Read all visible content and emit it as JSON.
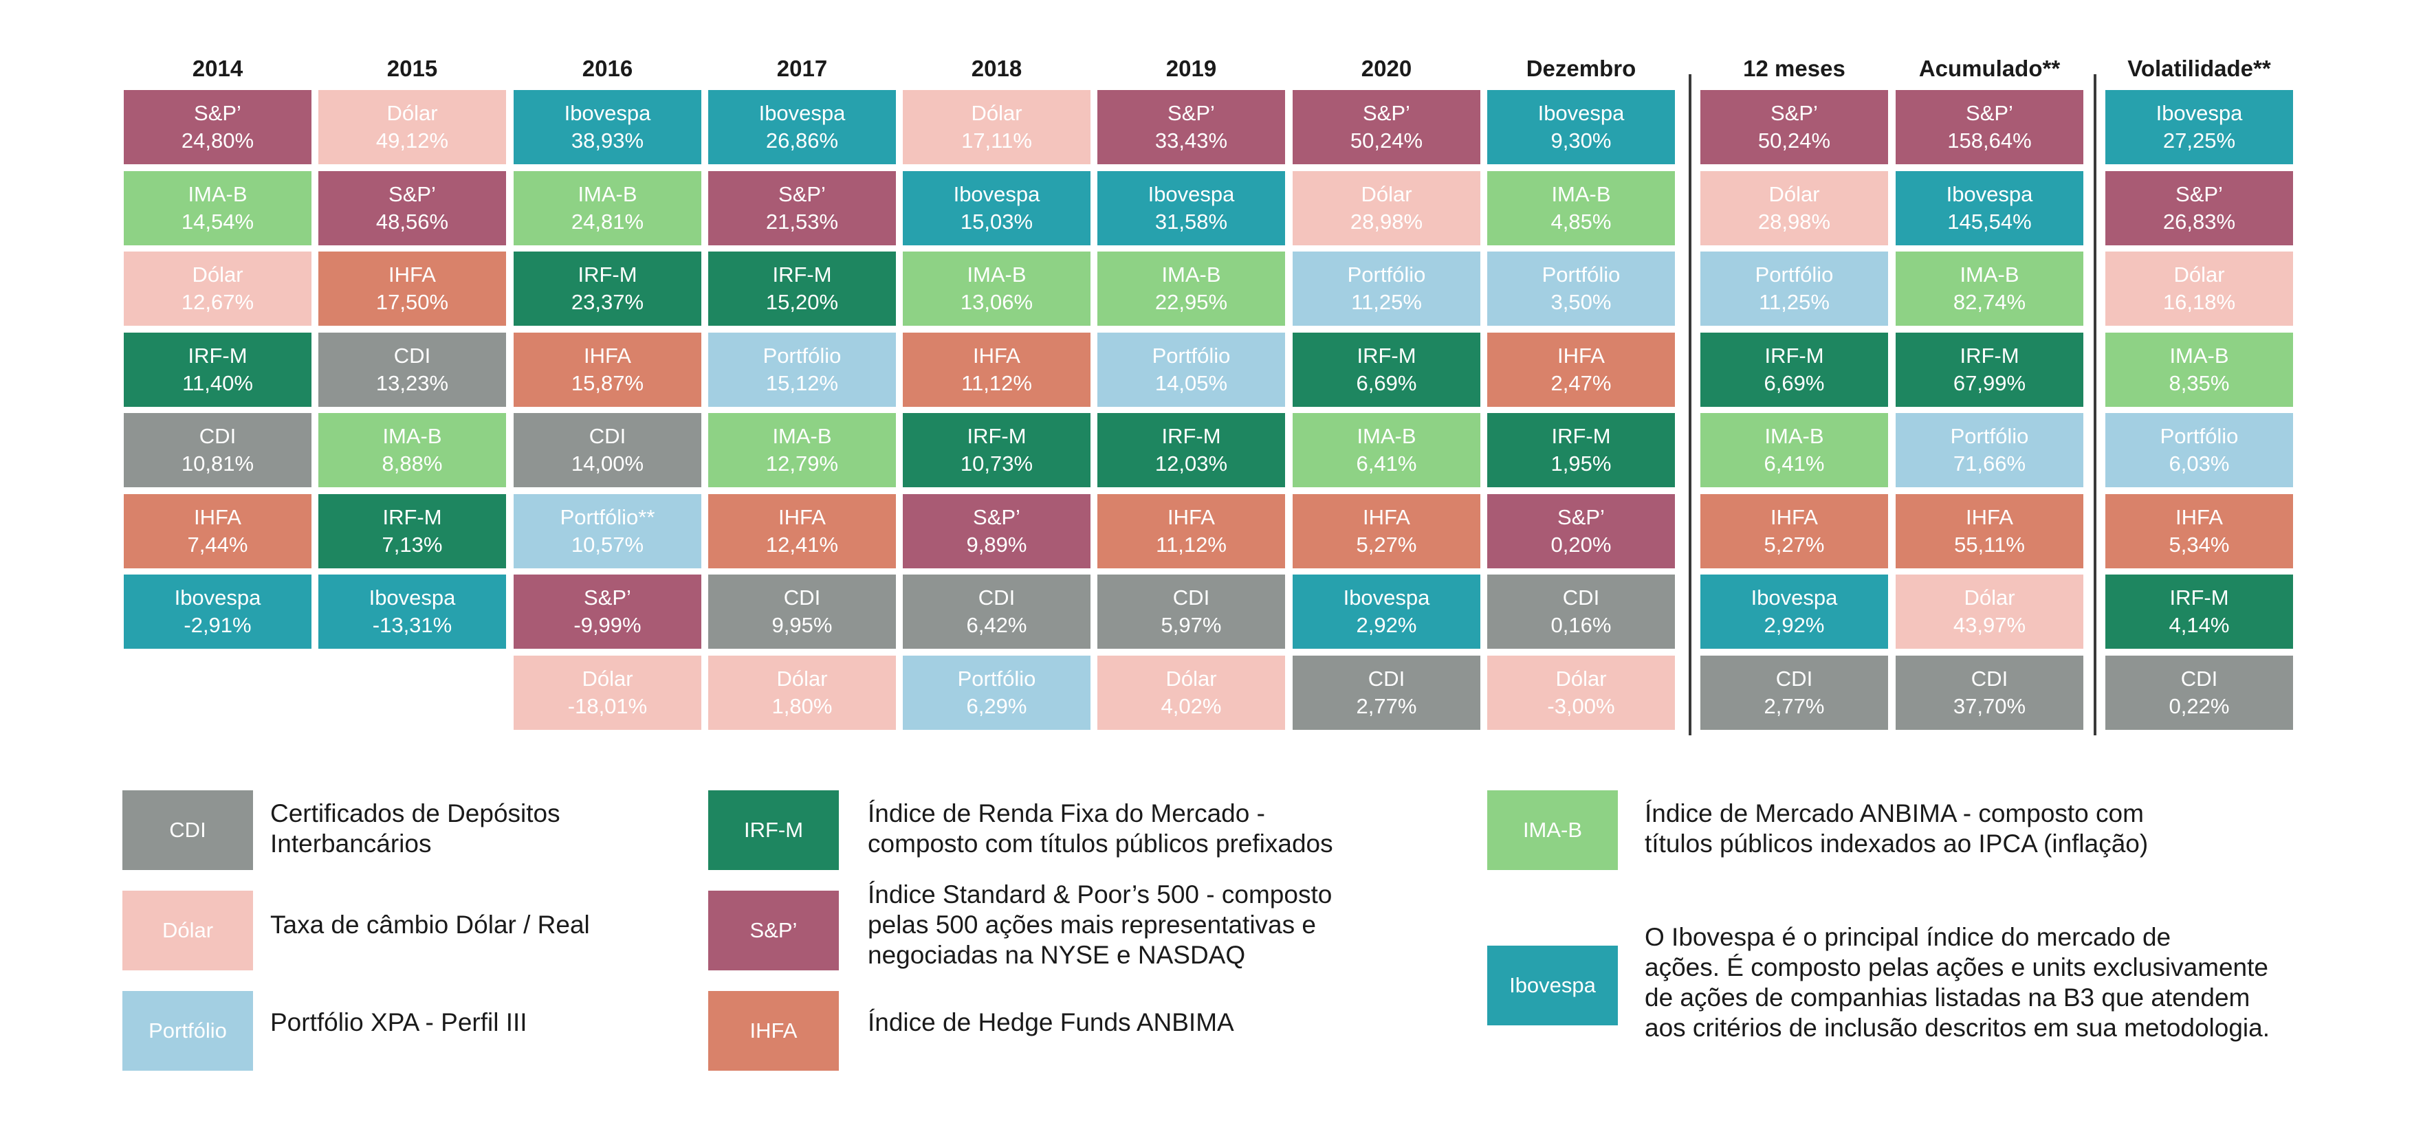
{
  "colors": {
    "CDI": "#8f9492",
    "Dólar": "#f4c4bd",
    "Portfólio": "#a3cfe2",
    "IRF-M": "#1e8660",
    "S&P'": "#a95b74",
    "IHFA": "#d9826a",
    "IMA-B": "#8ed285",
    "Ibovespa": "#27a1ad"
  },
  "chart_data": {
    "type": "table",
    "columns": [
      {
        "header": "2014",
        "cells": [
          {
            "asset": "S&P’",
            "key": "S&P'",
            "value": "24,80%"
          },
          {
            "asset": "IMA-B",
            "key": "IMA-B",
            "value": "14,54%"
          },
          {
            "asset": "Dólar",
            "key": "Dólar",
            "value": "12,67%"
          },
          {
            "asset": "IRF-M",
            "key": "IRF-M",
            "value": "11,40%"
          },
          {
            "asset": "CDI",
            "key": "CDI",
            "value": "10,81%"
          },
          {
            "asset": "IHFA",
            "key": "IHFA",
            "value": "7,44%"
          },
          {
            "asset": "Ibovespa",
            "key": "Ibovespa",
            "value": "-2,91%"
          }
        ]
      },
      {
        "header": "2015",
        "cells": [
          {
            "asset": "Dólar",
            "key": "Dólar",
            "value": "49,12%"
          },
          {
            "asset": "S&P’",
            "key": "S&P'",
            "value": "48,56%"
          },
          {
            "asset": "IHFA",
            "key": "IHFA",
            "value": "17,50%"
          },
          {
            "asset": "CDI",
            "key": "CDI",
            "value": "13,23%"
          },
          {
            "asset": "IMA-B",
            "key": "IMA-B",
            "value": "8,88%"
          },
          {
            "asset": "IRF-M",
            "key": "IRF-M",
            "value": "7,13%"
          },
          {
            "asset": "Ibovespa",
            "key": "Ibovespa",
            "value": "-13,31%"
          }
        ]
      },
      {
        "header": "2016",
        "cells": [
          {
            "asset": "Ibovespa",
            "key": "Ibovespa",
            "value": "38,93%"
          },
          {
            "asset": "IMA-B",
            "key": "IMA-B",
            "value": "24,81%"
          },
          {
            "asset": "IRF-M",
            "key": "IRF-M",
            "value": "23,37%"
          },
          {
            "asset": "IHFA",
            "key": "IHFA",
            "value": "15,87%"
          },
          {
            "asset": "CDI",
            "key": "CDI",
            "value": "14,00%"
          },
          {
            "asset": "Portfólio**",
            "key": "Portfólio",
            "value": "10,57%"
          },
          {
            "asset": "S&P’",
            "key": "S&P'",
            "value": "-9,99%"
          },
          {
            "asset": "Dólar",
            "key": "Dólar",
            "value": "-18,01%"
          }
        ]
      },
      {
        "header": "2017",
        "cells": [
          {
            "asset": "Ibovespa",
            "key": "Ibovespa",
            "value": "26,86%"
          },
          {
            "asset": "S&P’",
            "key": "S&P'",
            "value": "21,53%"
          },
          {
            "asset": "IRF-M",
            "key": "IRF-M",
            "value": "15,20%"
          },
          {
            "asset": "Portfólio",
            "key": "Portfólio",
            "value": "15,12%"
          },
          {
            "asset": "IMA-B",
            "key": "IMA-B",
            "value": "12,79%"
          },
          {
            "asset": "IHFA",
            "key": "IHFA",
            "value": "12,41%"
          },
          {
            "asset": "CDI",
            "key": "CDI",
            "value": "9,95%"
          },
          {
            "asset": "Dólar",
            "key": "Dólar",
            "value": "1,80%"
          }
        ]
      },
      {
        "header": "2018",
        "cells": [
          {
            "asset": "Dólar",
            "key": "Dólar",
            "value": "17,11%"
          },
          {
            "asset": "Ibovespa",
            "key": "Ibovespa",
            "value": "15,03%"
          },
          {
            "asset": "IMA-B",
            "key": "IMA-B",
            "value": "13,06%"
          },
          {
            "asset": "IHFA",
            "key": "IHFA",
            "value": "11,12%"
          },
          {
            "asset": "IRF-M",
            "key": "IRF-M",
            "value": "10,73%"
          },
          {
            "asset": "S&P’",
            "key": "S&P'",
            "value": "9,89%"
          },
          {
            "asset": "CDI",
            "key": "CDI",
            "value": "6,42%"
          },
          {
            "asset": "Portfólio",
            "key": "Portfólio",
            "value": "6,29%"
          }
        ]
      },
      {
        "header": "2019",
        "cells": [
          {
            "asset": "S&P’",
            "key": "S&P'",
            "value": "33,43%"
          },
          {
            "asset": "Ibovespa",
            "key": "Ibovespa",
            "value": "31,58%"
          },
          {
            "asset": "IMA-B",
            "key": "IMA-B",
            "value": "22,95%"
          },
          {
            "asset": "Portfólio",
            "key": "Portfólio",
            "value": "14,05%"
          },
          {
            "asset": "IRF-M",
            "key": "IRF-M",
            "value": "12,03%"
          },
          {
            "asset": "IHFA",
            "key": "IHFA",
            "value": "11,12%"
          },
          {
            "asset": "CDI",
            "key": "CDI",
            "value": "5,97%"
          },
          {
            "asset": "Dólar",
            "key": "Dólar",
            "value": "4,02%"
          }
        ]
      },
      {
        "header": "2020",
        "cells": [
          {
            "asset": "S&P’",
            "key": "S&P'",
            "value": "50,24%"
          },
          {
            "asset": "Dólar",
            "key": "Dólar",
            "value": "28,98%"
          },
          {
            "asset": "Portfólio",
            "key": "Portfólio",
            "value": "11,25%"
          },
          {
            "asset": "IRF-M",
            "key": "IRF-M",
            "value": "6,69%"
          },
          {
            "asset": "IMA-B",
            "key": "IMA-B",
            "value": "6,41%"
          },
          {
            "asset": "IHFA",
            "key": "IHFA",
            "value": "5,27%"
          },
          {
            "asset": "Ibovespa",
            "key": "Ibovespa",
            "value": "2,92%"
          },
          {
            "asset": "CDI",
            "key": "CDI",
            "value": "2,77%"
          }
        ]
      },
      {
        "header": "Dezembro",
        "cells": [
          {
            "asset": "Ibovespa",
            "key": "Ibovespa",
            "value": "9,30%"
          },
          {
            "asset": "IMA-B",
            "key": "IMA-B",
            "value": "4,85%"
          },
          {
            "asset": "Portfólio",
            "key": "Portfólio",
            "value": "3,50%"
          },
          {
            "asset": "IHFA",
            "key": "IHFA",
            "value": "2,47%"
          },
          {
            "asset": "IRF-M",
            "key": "IRF-M",
            "value": "1,95%"
          },
          {
            "asset": "S&P’",
            "key": "S&P'",
            "value": "0,20%"
          },
          {
            "asset": "CDI",
            "key": "CDI",
            "value": "0,16%"
          },
          {
            "asset": "Dólar",
            "key": "Dólar",
            "value": "-3,00%"
          }
        ]
      },
      {
        "header": "12 meses",
        "cells": [
          {
            "asset": "S&P’",
            "key": "S&P'",
            "value": "50,24%"
          },
          {
            "asset": "Dólar",
            "key": "Dólar",
            "value": "28,98%"
          },
          {
            "asset": "Portfólio",
            "key": "Portfólio",
            "value": "11,25%"
          },
          {
            "asset": "IRF-M",
            "key": "IRF-M",
            "value": "6,69%"
          },
          {
            "asset": "IMA-B",
            "key": "IMA-B",
            "value": "6,41%"
          },
          {
            "asset": "IHFA",
            "key": "IHFA",
            "value": "5,27%"
          },
          {
            "asset": "Ibovespa",
            "key": "Ibovespa",
            "value": "2,92%"
          },
          {
            "asset": "CDI",
            "key": "CDI",
            "value": "2,77%"
          }
        ]
      },
      {
        "header": "Acumulado**",
        "cells": [
          {
            "asset": "S&P’",
            "key": "S&P'",
            "value": "158,64%"
          },
          {
            "asset": "Ibovespa",
            "key": "Ibovespa",
            "value": "145,54%"
          },
          {
            "asset": "IMA-B",
            "key": "IMA-B",
            "value": "82,74%"
          },
          {
            "asset": "IRF-M",
            "key": "IRF-M",
            "value": "67,99%"
          },
          {
            "asset": "Portfólio",
            "key": "Portfólio",
            "value": "71,66%"
          },
          {
            "asset": "IHFA",
            "key": "IHFA",
            "value": "55,11%"
          },
          {
            "asset": "Dólar",
            "key": "Dólar",
            "value": "43,97%"
          },
          {
            "asset": "CDI",
            "key": "CDI",
            "value": "37,70%"
          }
        ]
      },
      {
        "header": "Volatilidade**",
        "cells": [
          {
            "asset": "Ibovespa",
            "key": "Ibovespa",
            "value": "27,25%"
          },
          {
            "asset": "S&P’",
            "key": "S&P'",
            "value": "26,83%"
          },
          {
            "asset": "Dólar",
            "key": "Dólar",
            "value": "16,18%"
          },
          {
            "asset": "IMA-B",
            "key": "IMA-B",
            "value": "8,35%"
          },
          {
            "asset": "Portfólio",
            "key": "Portfólio",
            "value": "6,03%"
          },
          {
            "asset": "IHFA",
            "key": "IHFA",
            "value": "5,34%"
          },
          {
            "asset": "IRF-M",
            "key": "IRF-M",
            "value": "4,14%"
          },
          {
            "asset": "CDI",
            "key": "CDI",
            "value": "0,22%"
          }
        ]
      }
    ]
  },
  "legend": [
    {
      "label": "CDI",
      "key": "CDI",
      "text": [
        "Certificados de Depósitos",
        "Interbancários"
      ]
    },
    {
      "label": "Dólar",
      "key": "Dólar",
      "text": [
        "Taxa de câmbio Dólar / Real"
      ]
    },
    {
      "label": "Portfólio",
      "key": "Portfólio",
      "text": [
        "Portfólio XPA - Perfil III"
      ]
    },
    {
      "label": "IRF-M",
      "key": "IRF-M",
      "text": [
        "Índice de Renda Fixa do Mercado -",
        "composto  com títulos públicos prefixados"
      ]
    },
    {
      "label": "S&P’",
      "key": "S&P'",
      "text": [
        "Índice Standard & Poor’s 500 - composto",
        "pelas 500 ações mais representativas e",
        "negociadas na NYSE e NASDAQ"
      ]
    },
    {
      "label": "IHFA",
      "key": "IHFA",
      "text": [
        "Índice de Hedge Funds ANBIMA"
      ]
    },
    {
      "label": "IMA-B",
      "key": "IMA-B",
      "text": [
        "Índice de Mercado ANBIMA - composto com",
        "títulos públicos indexados ao IPCA (inflação)"
      ]
    },
    {
      "label": "Ibovespa",
      "key": "Ibovespa",
      "text": [
        "O Ibovespa é o principal índice do mercado de",
        "ações. É composto pelas ações e units exclusivamente",
        "de ações de companhias listadas na B3 que atendem",
        "aos critérios de inclusão descritos em sua metodologia."
      ]
    }
  ]
}
